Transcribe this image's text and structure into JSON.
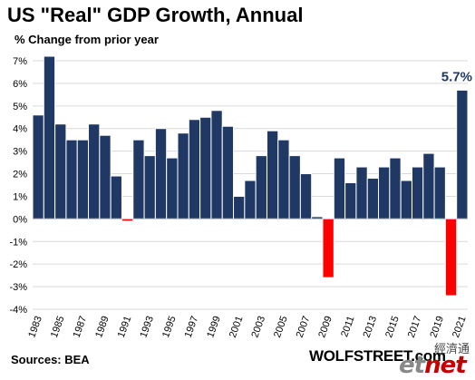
{
  "chart_data": {
    "type": "bar",
    "title": "US \"Real\" GDP Growth, Annual",
    "subtitle": "% Change from prior year",
    "source": "Sources: BEA",
    "categories": [
      "1983",
      "1984",
      "1985",
      "1986",
      "1987",
      "1988",
      "1989",
      "1990",
      "1991",
      "1992",
      "1993",
      "1994",
      "1995",
      "1996",
      "1997",
      "1998",
      "1999",
      "2000",
      "2001",
      "2002",
      "2003",
      "2004",
      "2005",
      "2006",
      "2007",
      "2008",
      "2009",
      "2010",
      "2011",
      "2012",
      "2013",
      "2014",
      "2015",
      "2016",
      "2017",
      "2018",
      "2019",
      "2020",
      "2021"
    ],
    "tick_labels": [
      "1983",
      "1985",
      "1987",
      "1989",
      "1991",
      "1993",
      "1995",
      "1997",
      "1999",
      "2001",
      "2003",
      "2005",
      "2007",
      "2009",
      "2011",
      "2013",
      "2015",
      "2017",
      "2019",
      "2021"
    ],
    "values": [
      4.6,
      7.2,
      4.2,
      3.5,
      3.5,
      4.2,
      3.7,
      1.9,
      -0.1,
      3.5,
      2.8,
      4.0,
      2.7,
      3.8,
      4.4,
      4.5,
      4.8,
      4.1,
      1.0,
      1.7,
      2.8,
      3.9,
      3.5,
      2.8,
      2.0,
      0.1,
      -2.6,
      2.7,
      1.6,
      2.3,
      1.8,
      2.3,
      2.7,
      1.7,
      2.3,
      2.9,
      2.3,
      -3.4,
      5.7
    ],
    "annotation": "5.7%",
    "ylim": [
      -4,
      7
    ],
    "yticks": [
      -4,
      -3,
      -2,
      -1,
      0,
      1,
      2,
      3,
      4,
      5,
      6,
      7
    ],
    "ytick_suffix": "%",
    "grid": true,
    "colors": {
      "positive": "#1f3864",
      "negative": "#ff0000",
      "bar_edge": "#ffffff",
      "grid": "#d9d9d9",
      "annotation": "#1f3864"
    }
  },
  "branding": {
    "site": "WOLFSTREET.com",
    "logo_cn": "經濟通",
    "logo_left": "et",
    "logo_right": "net"
  }
}
